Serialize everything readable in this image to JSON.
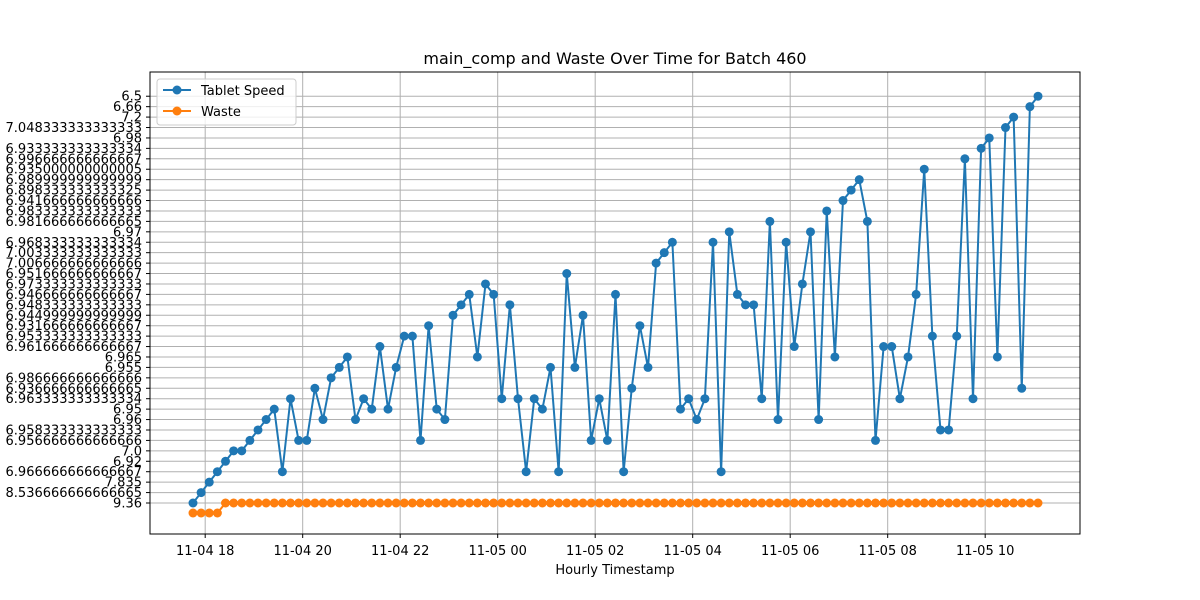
{
  "chart_data": {
    "type": "line",
    "title": "main_comp and Waste Over Time for Batch 460",
    "xlabel": "Hourly Timestamp",
    "ylabel": "",
    "grid": true,
    "legend_position": "upper-left",
    "x_ticks": [
      "11-04 18",
      "11-04 20",
      "11-04 22",
      "11-05 00",
      "11-05 02",
      "11-05 04",
      "11-05 06",
      "11-05 08",
      "11-05 10"
    ],
    "y_categories": [
      "9.36",
      "8.536666666666665",
      "7.835",
      "6.966666666666667",
      "6.92",
      "7.0",
      "6.956666666666666",
      "6.958333333333333",
      "6.96",
      "6.95",
      "6.963333333333334",
      "6.936666666666665",
      "6.986666666666666",
      "6.955",
      "6.965",
      "6.961666666666667",
      "6.953333333333333",
      "6.931666666666667",
      "6.944999999999999",
      "6.948333333333333",
      "6.946666666666667",
      "6.973333333333333",
      "6.951666666666667",
      "7.006666666666666",
      "7.003333333333333",
      "6.968333333333334",
      "6.97",
      "6.981666666666665",
      "6.983333333333333",
      "6.941666666666666",
      "6.898333333333325",
      "6.989999999999999",
      "6.935000000000005",
      "6.996666666666667",
      "6.933333333333334",
      "6.98",
      "7.048333333333333",
      "7.2",
      "6.66",
      "6.5"
    ],
    "series": [
      {
        "name": "Tablet Speed",
        "color": "#1f77b4",
        "start": "11-04 17:45",
        "step_minutes": 10,
        "values": [
          "9.36",
          "8.536666666666665",
          "7.835",
          "6.966666666666667",
          "6.92",
          "7.0",
          "7.0",
          "6.956666666666666",
          "6.958333333333333",
          "6.96",
          "6.95",
          "6.966666666666667",
          "6.963333333333334",
          "6.956666666666666",
          "6.956666666666666",
          "6.936666666666665",
          "6.96",
          "6.986666666666666",
          "6.955",
          "6.965",
          "6.96",
          "6.963333333333334",
          "6.95",
          "6.961666666666667",
          "6.95",
          "6.955",
          "6.953333333333333",
          "6.953333333333333",
          "6.956666666666666",
          "6.931666666666667",
          "6.95",
          "6.96",
          "6.944999999999999",
          "6.948333333333333",
          "6.946666666666667",
          "6.965",
          "6.973333333333333",
          "6.946666666666667",
          "6.963333333333334",
          "6.948333333333333",
          "6.963333333333334",
          "6.966666666666667",
          "6.963333333333334",
          "6.95",
          "6.955",
          "6.966666666666667",
          "6.951666666666667",
          "6.955",
          "6.944999999999999",
          "6.956666666666666",
          "6.963333333333334",
          "6.956666666666666",
          "6.946666666666667",
          "6.966666666666667",
          "6.936666666666665",
          "6.931666666666667",
          "6.955",
          "7.006666666666666",
          "7.003333333333333",
          "6.968333333333334",
          "6.95",
          "6.963333333333334",
          "6.96",
          "6.963333333333334",
          "6.968333333333334",
          "6.966666666666667",
          "6.97",
          "6.946666666666667",
          "6.948333333333333",
          "6.948333333333333",
          "6.963333333333334",
          "6.981666666666665",
          "6.96",
          "6.968333333333334",
          "6.961666666666667",
          "6.973333333333333",
          "6.97",
          "6.96",
          "6.983333333333333",
          "6.965",
          "6.941666666666666",
          "6.898333333333325",
          "6.989999999999999",
          "6.981666666666665",
          "6.956666666666666",
          "6.961666666666667",
          "6.961666666666667",
          "6.963333333333334",
          "6.965",
          "6.946666666666667",
          "6.935000000000005",
          "6.953333333333333",
          "6.958333333333333",
          "6.958333333333333",
          "6.953333333333333",
          "6.996666666666667",
          "6.963333333333334",
          "6.933333333333334",
          "6.98",
          "6.965",
          "7.048333333333333",
          "7.2",
          "6.936666666666665",
          "6.66",
          "6.5"
        ]
      },
      {
        "name": "Waste",
        "color": "#ff7f0e",
        "start": "11-04 17:45",
        "step_minutes": 10,
        "values": [
          0,
          0,
          0,
          0,
          1,
          1,
          1,
          1,
          1,
          1,
          1,
          1,
          1,
          1,
          1,
          1,
          1,
          1,
          1,
          1,
          1,
          1,
          1,
          1,
          1,
          1,
          1,
          1,
          1,
          1,
          1,
          1,
          1,
          1,
          1,
          1,
          1,
          1,
          1,
          1,
          1,
          1,
          1,
          1,
          1,
          1,
          1,
          1,
          1,
          1,
          1,
          1,
          1,
          1,
          1,
          1,
          1,
          1,
          1,
          1,
          1,
          1,
          1,
          1,
          1,
          1,
          1,
          1,
          1,
          1,
          1,
          1,
          1,
          1,
          1,
          1,
          1,
          1,
          1,
          1,
          1,
          1,
          1,
          1,
          1,
          1,
          1,
          1,
          1,
          1,
          1,
          1,
          1,
          1,
          1,
          1,
          1,
          1,
          1,
          1,
          1,
          1,
          1,
          1,
          1
        ]
      }
    ]
  }
}
